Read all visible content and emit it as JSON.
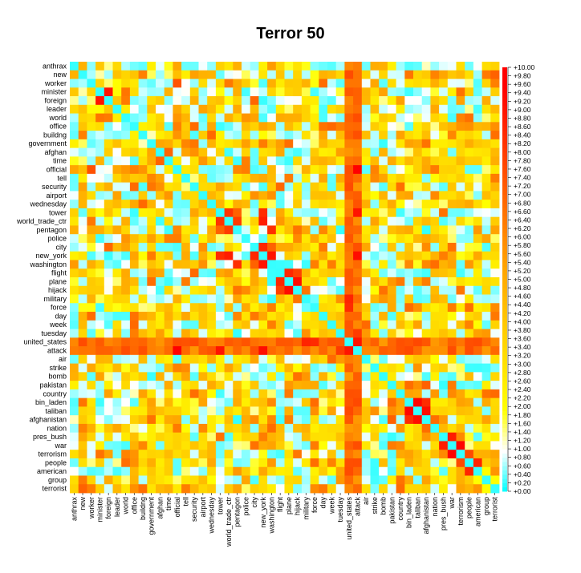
{
  "chart_data": {
    "type": "heatmap",
    "title": "Terror 50",
    "labels": [
      "anthrax",
      "new",
      "worker",
      "minister",
      "foreign",
      "leader",
      "world",
      "office",
      "buildng",
      "government",
      "afghan",
      "time",
      "official",
      "tell",
      "security",
      "airport",
      "wednesday",
      "tower",
      "world_trade_ctr",
      "pentagon",
      "police",
      "city",
      "new_york",
      "washington",
      "flight",
      "plane",
      "hijack",
      "military",
      "force",
      "day",
      "week",
      "tuesday",
      "united_states",
      "attack",
      "air",
      "strike",
      "bomb",
      "pakistan",
      "country",
      "bin_laden",
      "taliban",
      "afghanistan",
      "nation",
      "pres_bush",
      "war",
      "terrorism",
      "people",
      "american",
      "group",
      "terrorist"
    ],
    "scale": {
      "min": 0,
      "max": 10,
      "tick_labels": [
        "+0.00",
        "+0.20",
        "+0.40",
        "+0.60",
        "+0.80",
        "+1.00",
        "+1.20",
        "+1.40",
        "+1.60",
        "+1.80",
        "+2.00",
        "+2.20",
        "+2.40",
        "+2.60",
        "+2.80",
        "+3.00",
        "+3.20",
        "+3.40",
        "+3.60",
        "+3.80",
        "+4.00",
        "+4.20",
        "+4.40",
        "+4.60",
        "+4.80",
        "+5.00",
        "+5.20",
        "+5.40",
        "+5.60",
        "+5.80",
        "+6.00",
        "+6.20",
        "+6.40",
        "+6.60",
        "+6.80",
        "+7.00",
        "+7.20",
        "+7.40",
        "+7.60",
        "+7.80",
        "+8.00",
        "+8.20",
        "+8.40",
        "+8.60",
        "+8.80",
        "+9.00",
        "+9.20",
        "+9.40",
        "+9.60",
        "+9.80",
        "+10.00"
      ]
    },
    "color_scale": [
      "#00ffff",
      "#ffffff",
      "#ffff00",
      "#ffa500",
      "#ff0000"
    ],
    "strong_pairs": [
      [
        "world_trade_ctr",
        "pentagon",
        8.0
      ],
      [
        "world_trade_ctr",
        "tower",
        8.2
      ],
      [
        "pentagon",
        "tower",
        7.0
      ],
      [
        "new_york",
        "washington",
        9.0
      ],
      [
        "new_york",
        "city",
        8.5
      ],
      [
        "new_york",
        "world_trade_ctr",
        8.8
      ],
      [
        "new_york",
        "tower",
        8.4
      ],
      [
        "washington",
        "pentagon",
        8.3
      ],
      [
        "washington",
        "city",
        7.0
      ],
      [
        "flight",
        "plane",
        8.5
      ],
      [
        "plane",
        "hijack",
        9.2
      ],
      [
        "flight",
        "hijack",
        7.8
      ],
      [
        "hijack",
        "military",
        6.5
      ],
      [
        "united_states",
        "attack",
        9.0
      ],
      [
        "united_states",
        "military",
        8.6
      ],
      [
        "united_states",
        "force",
        8.4
      ],
      [
        "attack",
        "official",
        9.6
      ],
      [
        "attack",
        "tower",
        9.0
      ],
      [
        "attack",
        "new_york",
        9.2
      ],
      [
        "attack",
        "tuesday",
        8.0
      ],
      [
        "pakistan",
        "afghanistan",
        7.0
      ],
      [
        "bin_laden",
        "taliban",
        9.4
      ],
      [
        "taliban",
        "afghanistan",
        9.2
      ],
      [
        "bin_laden",
        "afghanistan",
        8.4
      ],
      [
        "pres_bush",
        "war",
        8.8
      ],
      [
        "war",
        "terrorism",
        9.4
      ],
      [
        "terrorism",
        "people",
        7.6
      ],
      [
        "american",
        "people",
        8.6
      ],
      [
        "minister",
        "foreign",
        9.0
      ],
      [
        "worker",
        "official",
        7.4
      ]
    ],
    "cyan_rows": [
      "anthrax",
      "worker",
      "minister",
      "foreign",
      "leader",
      "world",
      "tower",
      "world_trade_ctr",
      "pentagon",
      "city",
      "flight",
      "plane",
      "hijack",
      "military",
      "pakistan",
      "strike",
      "bomb"
    ],
    "grid": false,
    "legend_position": "right"
  }
}
